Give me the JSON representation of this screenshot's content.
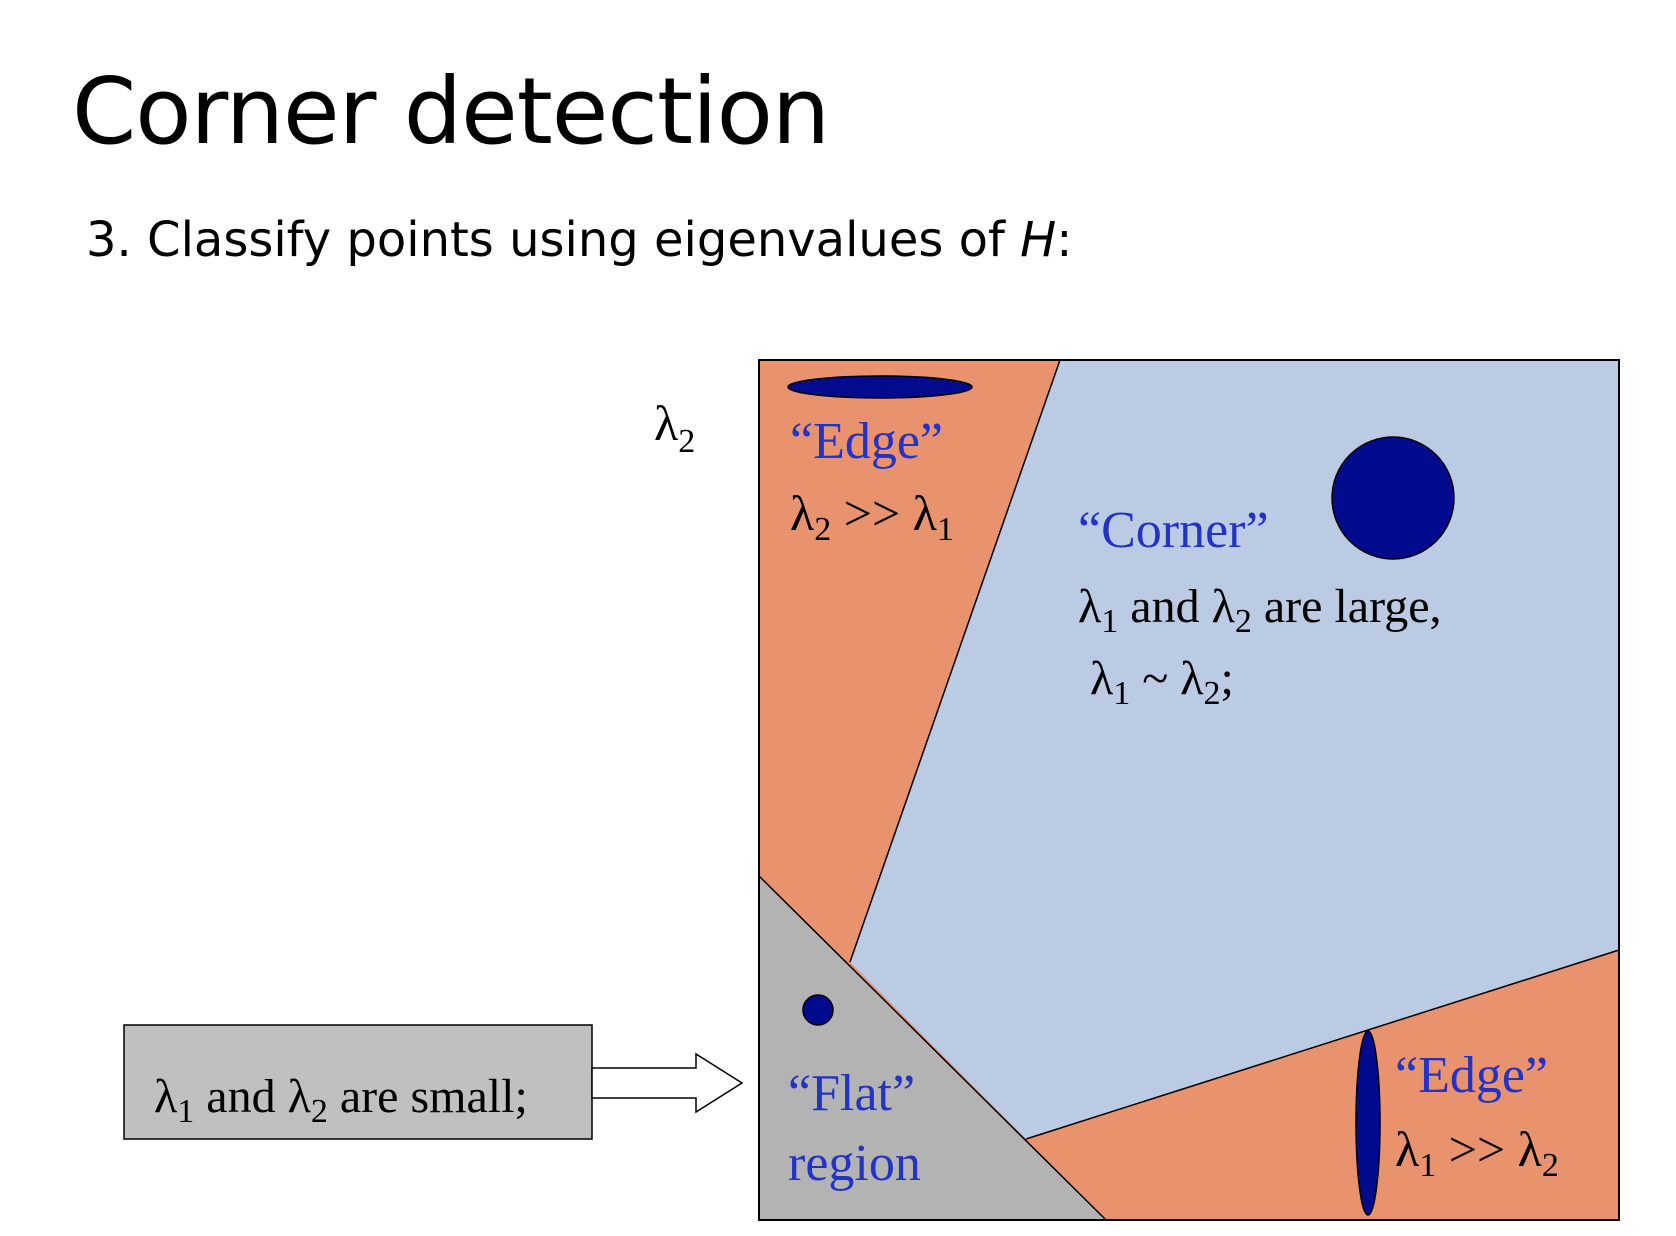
{
  "title": "Corner detection",
  "subtitle": {
    "prefix": "3. Classify points using eigenvalues of ",
    "emph": "H",
    "suffix": ":"
  },
  "axis_label": {
    "symbol": "λ",
    "sub": "2"
  },
  "colors": {
    "edge_region": "#e8926e",
    "corner_region": "#bccbe4",
    "flat_region": "#b3b3b3",
    "ellipse_fill": "#020b8e",
    "blue_text": "#2333c4",
    "callout_fill": "#c0c0c0"
  },
  "regions": {
    "edge_top": {
      "label": "“Edge”",
      "cond": {
        "a": "λ",
        "a_sub": "2",
        "op": " >> ",
        "b": "λ",
        "b_sub": "1"
      }
    },
    "corner": {
      "label": "“Corner”",
      "line1": {
        "a": "λ",
        "a_sub": "1",
        "mid": " and ",
        "b": "λ",
        "b_sub": "2",
        "end": " are large,"
      },
      "line2": {
        "a": "λ",
        "a_sub": "1",
        "op": " ~ ",
        "b": "λ",
        "b_sub": "2",
        "end": ";"
      }
    },
    "flat": {
      "label1": "“Flat”",
      "label2": "region"
    },
    "edge_right": {
      "label": "“Edge”",
      "cond": {
        "a": "λ",
        "a_sub": "1",
        "op": " >> ",
        "b": "λ",
        "b_sub": "2"
      }
    }
  },
  "callout": {
    "a": "λ",
    "a_sub": "1",
    "mid": " and ",
    "b": "λ",
    "b_sub": "2",
    "end": " are small;"
  }
}
